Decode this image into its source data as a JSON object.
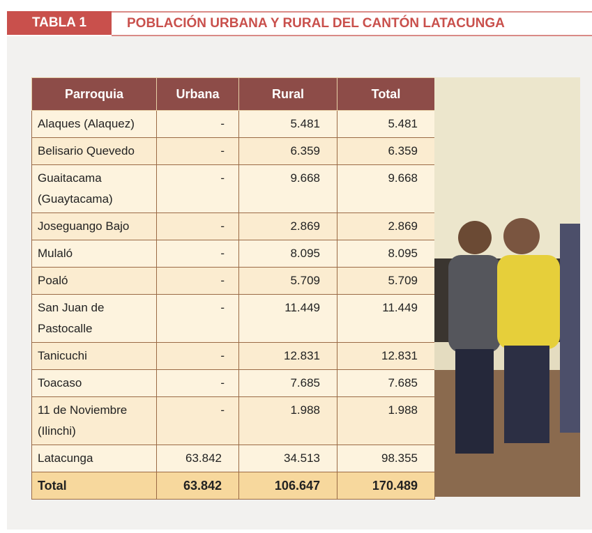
{
  "header": {
    "label": "TABLA 1",
    "title": "POBLACIÓN URBANA Y RURAL DEL CANTÓN LATACUNGA"
  },
  "table": {
    "columns": [
      "Parroquia",
      "Urbana",
      "Rural",
      "Total"
    ],
    "rows": [
      [
        "Alaques (Alaquez)",
        "-",
        "5.481",
        "5.481"
      ],
      [
        "Belisario Quevedo",
        "-",
        "6.359",
        "6.359"
      ],
      [
        "Guaitacama (Guaytacama)",
        "-",
        "9.668",
        "9.668"
      ],
      [
        "Joseguango Bajo",
        "-",
        "2.869",
        "2.869"
      ],
      [
        "Mulaló",
        "-",
        "8.095",
        "8.095"
      ],
      [
        "Poaló",
        "-",
        "5.709",
        "5.709"
      ],
      [
        "San Juan de Pastocalle",
        "-",
        "11.449",
        "11.449"
      ],
      [
        "Tanicuchi",
        "-",
        "12.831",
        "12.831"
      ],
      [
        "Toacaso",
        "-",
        "7.685",
        "7.685"
      ],
      [
        "11 de Noviembre (Ilinchi)",
        "-",
        "1.988",
        "1.988"
      ],
      [
        "Latacunga",
        "63.842",
        "34.513",
        "98.355"
      ]
    ],
    "total": [
      "Total",
      "63.842",
      "106.647",
      "170.489"
    ]
  }
}
